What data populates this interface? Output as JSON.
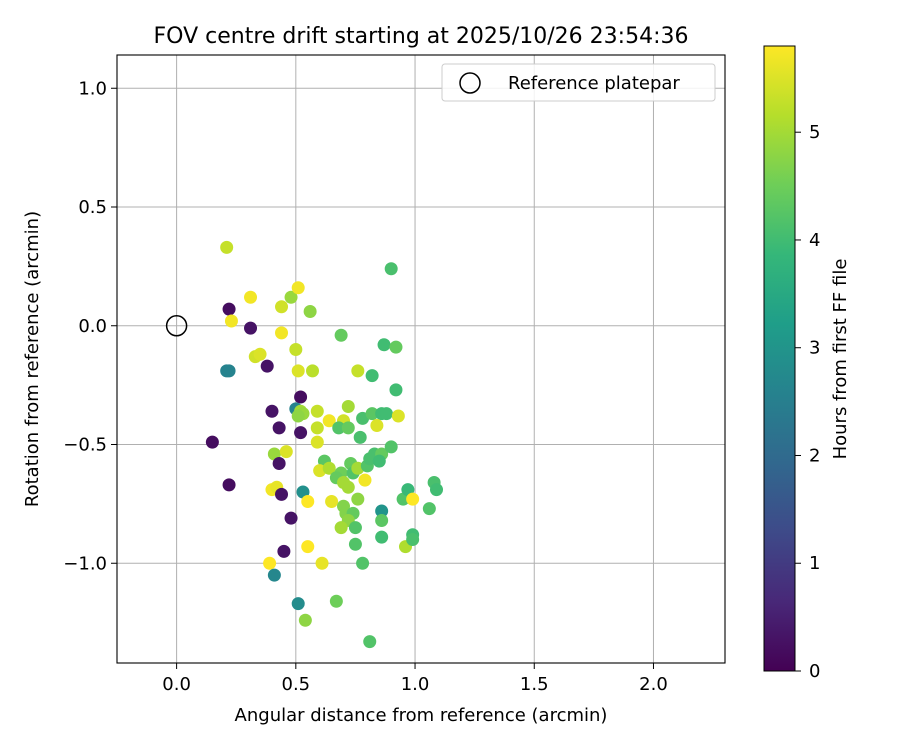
{
  "chart_data": {
    "type": "scatter",
    "title": "FOV centre drift starting at 2025/10/26 23:54:36",
    "xlabel": "Angular distance from reference (arcmin)",
    "ylabel": "Rotation from reference (arcmin)",
    "xlim": [
      -0.25,
      2.3
    ],
    "ylim": [
      -1.42,
      1.14
    ],
    "xticks": [
      0.0,
      0.5,
      1.0,
      1.5,
      2.0
    ],
    "xtick_labels": [
      "0.0",
      "0.5",
      "1.0",
      "1.5",
      "2.0"
    ],
    "yticks": [
      1.0,
      0.5,
      0.0,
      -0.5,
      -1.0
    ],
    "ytick_labels": [
      "1.0",
      "0.5",
      "0.0",
      "−0.5",
      "−1.0"
    ],
    "grid": true,
    "legend": {
      "position": "top-right",
      "entries": [
        "Reference platepar"
      ]
    },
    "reference": {
      "x": 0.0,
      "y": 0.0
    },
    "colorbar": {
      "label": "Hours from first FF file",
      "range": [
        0,
        5.8
      ],
      "ticks": [
        0,
        1,
        2,
        3,
        4,
        5
      ],
      "tick_labels": [
        "0",
        "1",
        "2",
        "3",
        "4",
        "5"
      ],
      "colormap": "viridis"
    },
    "points": [
      [
        0.21,
        0.33,
        5.3
      ],
      [
        0.9,
        0.24,
        4.1
      ],
      [
        0.22,
        0.07,
        0.2
      ],
      [
        0.31,
        0.12,
        5.7
      ],
      [
        0.44,
        0.08,
        5.4
      ],
      [
        0.48,
        0.12,
        4.9
      ],
      [
        0.51,
        0.16,
        5.7
      ],
      [
        0.56,
        0.06,
        4.8
      ],
      [
        0.23,
        0.02,
        5.7
      ],
      [
        0.31,
        -0.01,
        0.3
      ],
      [
        0.44,
        -0.03,
        5.7
      ],
      [
        0.5,
        -0.1,
        5.3
      ],
      [
        0.69,
        -0.04,
        4.4
      ],
      [
        0.87,
        -0.08,
        4.0
      ],
      [
        0.92,
        -0.09,
        4.4
      ],
      [
        0.21,
        -0.19,
        2.6
      ],
      [
        0.22,
        -0.19,
        2.6
      ],
      [
        0.33,
        -0.13,
        5.4
      ],
      [
        0.35,
        -0.12,
        5.5
      ],
      [
        0.38,
        -0.17,
        0.3
      ],
      [
        0.51,
        -0.19,
        5.5
      ],
      [
        0.57,
        -0.19,
        5.2
      ],
      [
        0.76,
        -0.19,
        5.3
      ],
      [
        0.82,
        -0.21,
        4.0
      ],
      [
        0.92,
        -0.27,
        4.0
      ],
      [
        0.52,
        -0.3,
        0.2
      ],
      [
        0.4,
        -0.36,
        0.3
      ],
      [
        0.5,
        -0.35,
        2.6
      ],
      [
        0.52,
        -0.36,
        5.0
      ],
      [
        0.53,
        -0.37,
        4.9
      ],
      [
        0.51,
        -0.38,
        4.8
      ],
      [
        0.59,
        -0.36,
        5.3
      ],
      [
        0.64,
        -0.4,
        5.7
      ],
      [
        0.7,
        -0.4,
        5.4
      ],
      [
        0.68,
        -0.43,
        4.2
      ],
      [
        0.72,
        -0.34,
        5.0
      ],
      [
        0.72,
        -0.43,
        4.4
      ],
      [
        0.78,
        -0.39,
        4.1
      ],
      [
        0.82,
        -0.37,
        4.3
      ],
      [
        0.86,
        -0.37,
        4.0
      ],
      [
        0.88,
        -0.37,
        4.0
      ],
      [
        0.93,
        -0.38,
        5.5
      ],
      [
        0.84,
        -0.42,
        5.5
      ],
      [
        0.59,
        -0.43,
        5.3
      ],
      [
        0.43,
        -0.43,
        0.3
      ],
      [
        0.52,
        -0.45,
        0.3
      ],
      [
        0.59,
        -0.49,
        5.5
      ],
      [
        0.77,
        -0.47,
        4.1
      ],
      [
        0.15,
        -0.49,
        0.2
      ],
      [
        0.41,
        -0.54,
        4.9
      ],
      [
        0.46,
        -0.53,
        5.5
      ],
      [
        0.43,
        -0.58,
        0.3
      ],
      [
        0.62,
        -0.57,
        4.3
      ],
      [
        0.6,
        -0.61,
        5.5
      ],
      [
        0.64,
        -0.6,
        5.1
      ],
      [
        0.69,
        -0.62,
        4.5
      ],
      [
        0.73,
        -0.58,
        4.4
      ],
      [
        0.74,
        -0.62,
        4.2
      ],
      [
        0.76,
        -0.6,
        5.0
      ],
      [
        0.8,
        -0.59,
        4.2
      ],
      [
        0.81,
        -0.56,
        4.1
      ],
      [
        0.83,
        -0.54,
        4.1
      ],
      [
        0.86,
        -0.54,
        4.4
      ],
      [
        0.85,
        -0.57,
        4.0
      ],
      [
        0.9,
        -0.51,
        4.2
      ],
      [
        0.67,
        -0.64,
        4.4
      ],
      [
        0.7,
        -0.66,
        5.0
      ],
      [
        0.72,
        -0.68,
        5.0
      ],
      [
        0.79,
        -0.65,
        5.7
      ],
      [
        0.22,
        -0.67,
        0.2
      ],
      [
        0.4,
        -0.69,
        5.7
      ],
      [
        0.42,
        -0.68,
        5.6
      ],
      [
        0.44,
        -0.71,
        0.3
      ],
      [
        0.53,
        -0.7,
        2.9
      ],
      [
        0.55,
        -0.74,
        5.8
      ],
      [
        0.65,
        -0.74,
        5.6
      ],
      [
        0.76,
        -0.73,
        4.8
      ],
      [
        0.7,
        -0.76,
        4.7
      ],
      [
        0.71,
        -0.79,
        4.7
      ],
      [
        0.74,
        -0.79,
        4.4
      ],
      [
        0.72,
        -0.82,
        4.8
      ],
      [
        0.69,
        -0.85,
        5.0
      ],
      [
        0.75,
        -0.85,
        4.2
      ],
      [
        0.86,
        -0.78,
        3.0
      ],
      [
        0.86,
        -0.82,
        4.3
      ],
      [
        0.95,
        -0.73,
        4.2
      ],
      [
        0.97,
        -0.69,
        3.9
      ],
      [
        0.99,
        -0.73,
        5.8
      ],
      [
        1.06,
        -0.77,
        4.2
      ],
      [
        1.08,
        -0.66,
        4.1
      ],
      [
        1.09,
        -0.69,
        4.0
      ],
      [
        0.48,
        -0.81,
        0.3
      ],
      [
        0.45,
        -0.95,
        0.3
      ],
      [
        0.55,
        -0.93,
        5.8
      ],
      [
        0.75,
        -0.92,
        4.2
      ],
      [
        0.86,
        -0.89,
        4.0
      ],
      [
        0.96,
        -0.93,
        5.1
      ],
      [
        0.99,
        -0.88,
        4.0
      ],
      [
        0.99,
        -0.9,
        4.1
      ],
      [
        0.39,
        -1.0,
        5.8
      ],
      [
        0.41,
        -1.05,
        2.7
      ],
      [
        0.61,
        -1.0,
        5.6
      ],
      [
        0.78,
        -1.0,
        4.2
      ],
      [
        0.51,
        -1.17,
        2.8
      ],
      [
        0.67,
        -1.16,
        4.5
      ],
      [
        0.54,
        -1.24,
        4.8
      ],
      [
        0.81,
        -1.33,
        4.2
      ]
    ]
  }
}
